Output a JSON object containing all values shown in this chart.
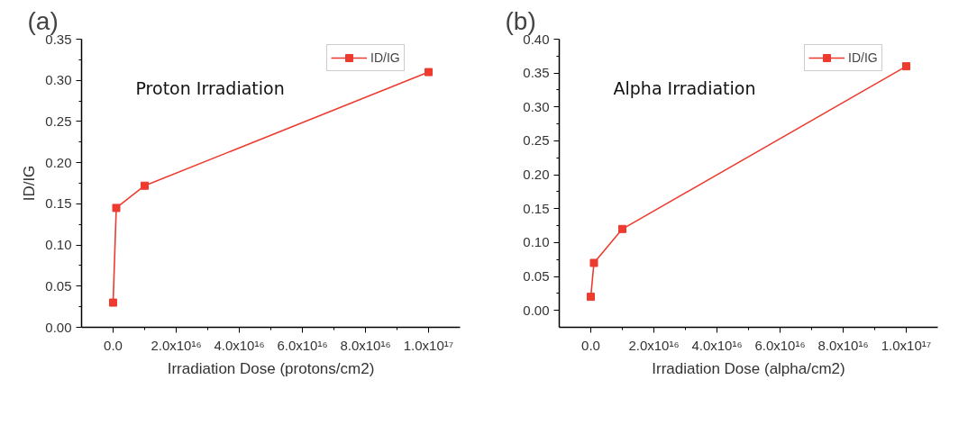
{
  "chart_data": [
    {
      "type": "line",
      "title": "(a)",
      "xlabel": "Irradiation Dose (protons/cm2)",
      "ylabel": "ID/IG",
      "annotations": [
        "Proton Irradiation"
      ],
      "x": [
        0,
        1000000000000000.0,
        1e+16,
        1e+17
      ],
      "series": [
        {
          "name": "ID/IG",
          "color": "#ee3b2f",
          "values": [
            0.03,
            0.145,
            0.172,
            0.31
          ]
        }
      ],
      "xlim": [
        -1e+16,
        1.1e+17
      ],
      "xticks": [
        {
          "value": 0,
          "label": "0.0"
        },
        {
          "value": 2e+16,
          "label": "2.0x10¹⁶"
        },
        {
          "value": 4e+16,
          "label": "4.0x10¹⁶"
        },
        {
          "value": 6e+16,
          "label": "6.0x10¹⁶"
        },
        {
          "value": 8e+16,
          "label": "8.0x10¹⁶"
        },
        {
          "value": 1e+17,
          "label": "1.0x10¹⁷"
        }
      ],
      "ylim": [
        0,
        0.35
      ],
      "yticks": [
        {
          "value": 0,
          "label": "0.00"
        },
        {
          "value": 0.05,
          "label": "0.05"
        },
        {
          "value": 0.1,
          "label": "0.10"
        },
        {
          "value": 0.15,
          "label": "0.15"
        },
        {
          "value": 0.2,
          "label": "0.20"
        },
        {
          "value": 0.25,
          "label": "0.25"
        },
        {
          "value": 0.3,
          "label": "0.30"
        },
        {
          "value": 0.35,
          "label": "0.35"
        }
      ],
      "marker": "square",
      "line_style": "solid",
      "legend": "top right",
      "grid": false
    },
    {
      "type": "line",
      "title": "(b)",
      "xlabel": "Irradiation Dose (alpha/cm2)",
      "annotations": [
        "Alpha Irradiation"
      ],
      "x": [
        0,
        1000000000000000.0,
        1e+16,
        1e+17
      ],
      "series": [
        {
          "name": "ID/IG",
          "color": "#ee3b2f",
          "values": [
            0.02,
            0.07,
            0.12,
            0.36
          ]
        }
      ],
      "xlim": [
        -1e+16,
        1.1e+17
      ],
      "xticks": [
        {
          "value": 0,
          "label": "0.0"
        },
        {
          "value": 2e+16,
          "label": "2.0x10¹⁶"
        },
        {
          "value": 4e+16,
          "label": "4.0x10¹⁶"
        },
        {
          "value": 6e+16,
          "label": "6.0x10¹⁶"
        },
        {
          "value": 8e+16,
          "label": "8.0x10¹⁶"
        },
        {
          "value": 1e+17,
          "label": "1.0x10¹⁷"
        }
      ],
      "ylim": [
        -0.025,
        0.4
      ],
      "yticks": [
        {
          "value": 0,
          "label": "0.00"
        },
        {
          "value": 0.05,
          "label": "0.05"
        },
        {
          "value": 0.1,
          "label": "0.10"
        },
        {
          "value": 0.15,
          "label": "0.15"
        },
        {
          "value": 0.2,
          "label": "0.20"
        },
        {
          "value": 0.25,
          "label": "0.25"
        },
        {
          "value": 0.3,
          "label": "0.30"
        },
        {
          "value": 0.35,
          "label": "0.35"
        },
        {
          "value": 0.4,
          "label": "0.40"
        }
      ],
      "marker": "square",
      "line_style": "solid",
      "legend": "top right",
      "grid": false
    }
  ]
}
